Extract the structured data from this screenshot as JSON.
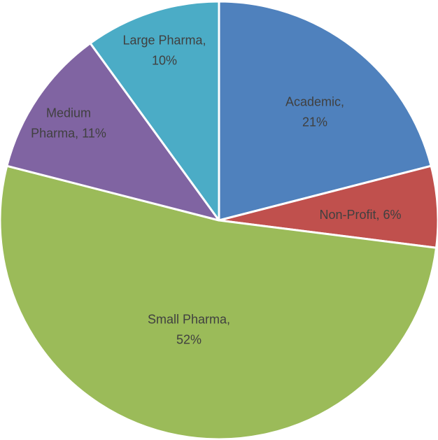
{
  "chart_data": {
    "type": "pie",
    "title": "",
    "start_angle_deg": 0,
    "direction": "clockwise",
    "legend": "none",
    "slices": [
      {
        "key": "academic",
        "label_lines": [
          "Academic,",
          "21%"
        ],
        "value": 21,
        "color": "#4f81bd"
      },
      {
        "key": "non-profit",
        "label_lines": [
          "Non-Profit, 6%"
        ],
        "value": 6,
        "color": "#c0504d"
      },
      {
        "key": "small-pharma",
        "label_lines": [
          "Small Pharma,",
          "52%"
        ],
        "value": 52,
        "color": "#9bbb59"
      },
      {
        "key": "medium-pharma",
        "label_lines": [
          "Medium",
          "Pharma, 11%"
        ],
        "value": 11,
        "color": "#8064a2"
      },
      {
        "key": "large-pharma",
        "label_lines": [
          "Large Pharma,",
          "10%"
        ],
        "value": 10,
        "color": "#4bacc6"
      }
    ]
  }
}
